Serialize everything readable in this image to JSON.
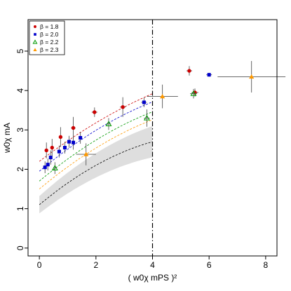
{
  "chart_data": {
    "type": "scatter",
    "xlabel": "( w0χ mPS )²",
    "ylabel": "w0χ mA",
    "xlim": [
      -0.4,
      8.4
    ],
    "ylim": [
      -0.2,
      5.8
    ],
    "xticks": [
      0,
      2,
      4,
      6,
      8
    ],
    "yticks": [
      0,
      1,
      2,
      3,
      4,
      5
    ],
    "grid": false,
    "legend_position": "top-left",
    "vertical_line_x": 4.0,
    "series": [
      {
        "name": "β = 1.8",
        "marker": "circle-filled",
        "color": "#cc0000",
        "points": [
          {
            "x": 0.25,
            "y": 2.48,
            "xerr": 0.05,
            "yerr": 0.2
          },
          {
            "x": 0.45,
            "y": 2.55,
            "xerr": 0.05,
            "yerr": 0.22
          },
          {
            "x": 0.75,
            "y": 2.82,
            "xerr": 0.05,
            "yerr": 0.25
          },
          {
            "x": 1.2,
            "y": 3.05,
            "xerr": 0.08,
            "yerr": 0.28
          },
          {
            "x": 1.95,
            "y": 3.45,
            "xerr": 0.1,
            "yerr": 0.12
          },
          {
            "x": 2.95,
            "y": 3.58,
            "xerr": 0.1,
            "yerr": 0.25
          },
          {
            "x": 5.3,
            "y": 4.5,
            "xerr": 0.1,
            "yerr": 0.12
          },
          {
            "x": 5.5,
            "y": 3.95,
            "xerr": 0.12,
            "yerr": 0.1
          }
        ]
      },
      {
        "name": "β = 2.0",
        "marker": "square-filled",
        "color": "#0000cc",
        "points": [
          {
            "x": 0.2,
            "y": 2.05,
            "xerr": 0.04,
            "yerr": 0.15
          },
          {
            "x": 0.3,
            "y": 2.12,
            "xerr": 0.04,
            "yerr": 0.15
          },
          {
            "x": 0.4,
            "y": 2.3,
            "xerr": 0.04,
            "yerr": 0.18
          },
          {
            "x": 0.7,
            "y": 2.45,
            "xerr": 0.05,
            "yerr": 0.15
          },
          {
            "x": 0.9,
            "y": 2.55,
            "xerr": 0.05,
            "yerr": 0.15
          },
          {
            "x": 1.05,
            "y": 2.7,
            "xerr": 0.05,
            "yerr": 0.15
          },
          {
            "x": 1.2,
            "y": 2.68,
            "xerr": 0.05,
            "yerr": 0.18
          },
          {
            "x": 1.45,
            "y": 2.8,
            "xerr": 0.06,
            "yerr": 0.15
          },
          {
            "x": 3.7,
            "y": 3.7,
            "xerr": 0.1,
            "yerr": 0.12
          },
          {
            "x": 6.0,
            "y": 4.4,
            "xerr": 0.1,
            "yerr": 0.05
          }
        ]
      },
      {
        "name": "β = 2.2",
        "marker": "triangle-open",
        "color": "#009900",
        "points": [
          {
            "x": 0.55,
            "y": 2.03,
            "xerr": 0.05,
            "yerr": 0.15
          },
          {
            "x": 2.45,
            "y": 3.15,
            "xerr": 0.08,
            "yerr": 0.15
          },
          {
            "x": 3.8,
            "y": 3.3,
            "xerr": 0.1,
            "yerr": 0.22
          },
          {
            "x": 5.45,
            "y": 3.92,
            "xerr": 0.12,
            "yerr": 0.12
          }
        ]
      },
      {
        "name": "β = 2.3",
        "marker": "triangle-filled",
        "color": "#ff9900",
        "points": [
          {
            "x": 1.65,
            "y": 2.38,
            "xerr": 0.35,
            "yerr": 0.28
          },
          {
            "x": 4.35,
            "y": 3.85,
            "xerr": 0.55,
            "yerr": 0.3
          },
          {
            "x": 7.5,
            "y": 4.35,
            "xerr": 1.2,
            "yerr": 0.4
          }
        ]
      }
    ],
    "fit_curves": [
      {
        "series": "β = 1.8",
        "color": "#cc0000",
        "a": 2.2,
        "b": 0.55,
        "c": -0.03
      },
      {
        "series": "β = 2.0",
        "color": "#0000cc",
        "a": 1.95,
        "b": 0.6,
        "c": -0.04
      },
      {
        "series": "β = 2.2",
        "color": "#009900",
        "a": 1.7,
        "b": 0.6,
        "c": -0.04
      },
      {
        "series": "β = 2.3",
        "color": "#ff9900",
        "a": 1.5,
        "b": 0.6,
        "c": -0.04
      },
      {
        "series": "continuum",
        "color": "#000000",
        "a": 1.1,
        "b": 0.6,
        "c": -0.05,
        "band": 0.22
      }
    ]
  }
}
